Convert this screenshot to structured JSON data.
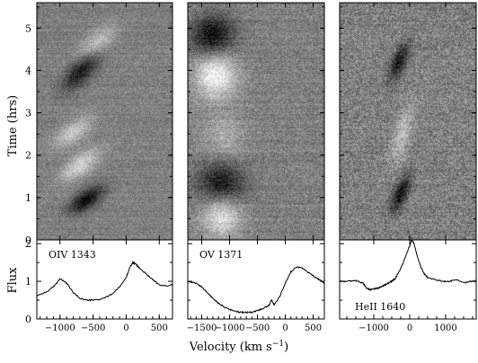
{
  "figure": {
    "time_axis_label": "Time (hrs)",
    "flux_axis_label": "Flux",
    "x_axis_label_prefix": "Velocity (km s",
    "x_axis_label_exp": "−1",
    "x_axis_label_suffix": ")"
  },
  "chart_data": [
    {
      "type": "heatmap",
      "panel": "OIV 1343",
      "line_label": "OIV 1343",
      "ylabel": "Time (hrs)",
      "ylim": [
        0,
        5.6
      ],
      "yticks": [
        0,
        1,
        2,
        3,
        4,
        5
      ],
      "xlim": [
        -1350,
        700
      ],
      "xticks": [
        -1000,
        -500,
        0,
        500
      ],
      "features": [
        {
          "kind": "dark",
          "v": -600,
          "t": 0.95,
          "sv": 140,
          "st": 0.22,
          "tilt": 520,
          "amp": 1.0
        },
        {
          "kind": "light",
          "v": -700,
          "t": 1.75,
          "sv": 150,
          "st": 0.25,
          "tilt": 500,
          "amp": 0.7
        },
        {
          "kind": "light",
          "v": -800,
          "t": 2.55,
          "sv": 150,
          "st": 0.25,
          "tilt": 520,
          "amp": 0.6
        },
        {
          "kind": "dark",
          "v": -650,
          "t": 4.05,
          "sv": 140,
          "st": 0.35,
          "tilt": 420,
          "amp": 0.95
        },
        {
          "kind": "light",
          "v": -450,
          "t": 4.6,
          "sv": 150,
          "st": 0.3,
          "tilt": 420,
          "amp": 0.7
        }
      ]
    },
    {
      "type": "heatmap",
      "panel": "OV 1371",
      "line_label": "OV 1371",
      "ylim": [
        0,
        5.6
      ],
      "yticks": [
        0,
        1,
        2,
        3,
        4,
        5
      ],
      "xlim": [
        -1750,
        700
      ],
      "xticks": [
        -1500,
        -1000,
        -500,
        0,
        500
      ],
      "features": [
        {
          "kind": "dark",
          "v": -1300,
          "t": 4.8,
          "sv": 270,
          "st": 0.35,
          "tilt": 0,
          "amp": 1.0
        },
        {
          "kind": "light",
          "v": -1250,
          "t": 3.9,
          "sv": 260,
          "st": 0.4,
          "tilt": 0,
          "amp": 1.0
        },
        {
          "kind": "dark",
          "v": -1150,
          "t": 1.35,
          "sv": 300,
          "st": 0.35,
          "tilt": 0,
          "amp": 0.9
        },
        {
          "kind": "light",
          "v": -1150,
          "t": 0.55,
          "sv": 250,
          "st": 0.35,
          "tilt": 0,
          "amp": 0.8
        },
        {
          "kind": "light",
          "v": -1100,
          "t": 2.4,
          "sv": 280,
          "st": 0.4,
          "tilt": 0,
          "amp": 0.35
        }
      ]
    },
    {
      "type": "heatmap",
      "panel": "HeII 1640",
      "line_label": "HeII 1640",
      "ylim": [
        0,
        5.6
      ],
      "yticks": [
        0,
        1,
        2,
        3,
        4,
        5
      ],
      "xlim": [
        -1950,
        1850
      ],
      "xticks": [
        -1000,
        0,
        1000
      ],
      "features": [
        {
          "kind": "dark",
          "v": -300,
          "t": 4.2,
          "sv": 150,
          "st": 0.3,
          "tilt": 400,
          "amp": 0.9
        },
        {
          "kind": "dark",
          "v": -250,
          "t": 1.1,
          "sv": 150,
          "st": 0.3,
          "tilt": 400,
          "amp": 0.9
        },
        {
          "kind": "light",
          "v": -200,
          "t": 2.5,
          "sv": 170,
          "st": 0.5,
          "tilt": 300,
          "amp": 0.5
        }
      ]
    },
    {
      "type": "line",
      "panel": "OIV 1343",
      "line_label": "OIV 1343",
      "ylabel": "Flux",
      "xlim": [
        -1350,
        700
      ],
      "ylim": [
        0,
        2.1
      ],
      "yticks": [
        0,
        1,
        2
      ],
      "xticks": [
        -1000,
        -500,
        0,
        500
      ],
      "x": [
        -1350,
        -1200,
        -1100,
        -1000,
        -900,
        -800,
        -700,
        -600,
        -500,
        -400,
        -300,
        -200,
        -100,
        0,
        50,
        100,
        150,
        200,
        300,
        400,
        500,
        600,
        700
      ],
      "y": [
        0.62,
        0.72,
        0.85,
        1.07,
        0.95,
        0.7,
        0.55,
        0.5,
        0.5,
        0.52,
        0.58,
        0.68,
        0.85,
        1.1,
        1.35,
        1.5,
        1.45,
        1.35,
        1.2,
        1.05,
        0.9,
        0.88,
        0.92
      ]
    },
    {
      "type": "line",
      "panel": "OV 1371",
      "line_label": "OV 1371",
      "xlim": [
        -1750,
        700
      ],
      "ylim": [
        0,
        2.1
      ],
      "xticks": [
        -1500,
        -1000,
        -500,
        0,
        500
      ],
      "x": [
        -1750,
        -1600,
        -1500,
        -1400,
        -1300,
        -1200,
        -1100,
        -1000,
        -900,
        -800,
        -700,
        -600,
        -500,
        -400,
        -300,
        -250,
        -200,
        -100,
        0,
        100,
        200,
        300,
        400,
        500,
        600,
        700
      ],
      "y": [
        1.0,
        0.95,
        0.85,
        0.7,
        0.55,
        0.42,
        0.32,
        0.25,
        0.2,
        0.18,
        0.17,
        0.18,
        0.22,
        0.28,
        0.35,
        0.5,
        0.38,
        0.6,
        0.95,
        1.25,
        1.38,
        1.35,
        1.25,
        1.15,
        1.05,
        0.95
      ]
    },
    {
      "type": "line",
      "panel": "HeII 1640",
      "line_label": "HeII 1640",
      "xlim": [
        -1950,
        1850
      ],
      "ylim": [
        0,
        2.1
      ],
      "xticks": [
        -1000,
        0,
        1000
      ],
      "x": [
        -1950,
        -1700,
        -1500,
        -1300,
        -1200,
        -1100,
        -1000,
        -900,
        -800,
        -700,
        -600,
        -500,
        -400,
        -300,
        -200,
        -100,
        0,
        50,
        100,
        150,
        200,
        300,
        400,
        500,
        700,
        900,
        1100,
        1300,
        1500,
        1700,
        1850
      ],
      "y": [
        1.0,
        1.0,
        1.02,
        0.95,
        0.82,
        0.78,
        0.8,
        0.82,
        0.85,
        0.9,
        0.95,
        1.0,
        1.08,
        1.25,
        1.45,
        1.7,
        1.95,
        2.1,
        2.05,
        1.9,
        1.7,
        1.4,
        1.2,
        1.1,
        1.05,
        1.0,
        1.0,
        1.05,
        0.97,
        1.0,
        1.0
      ]
    }
  ]
}
